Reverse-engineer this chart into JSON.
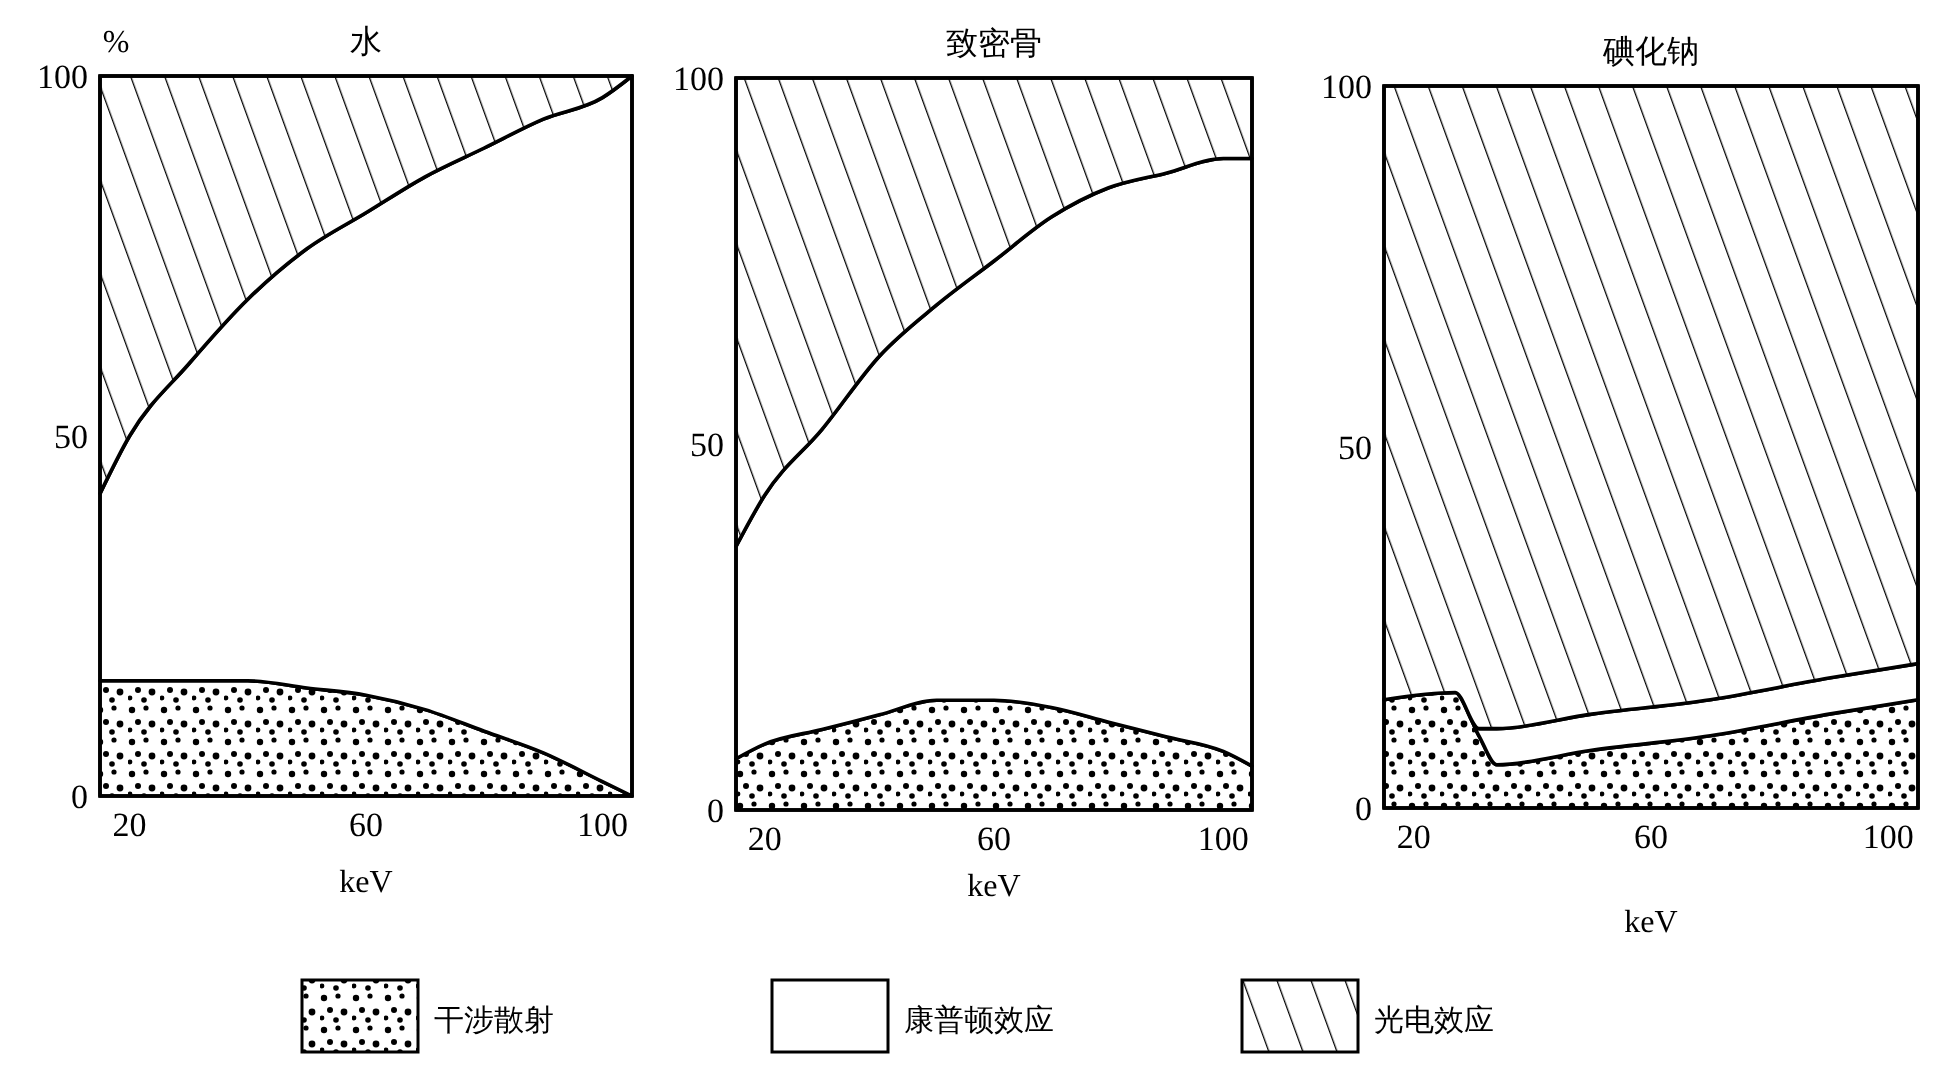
{
  "chart_data": [
    {
      "type": "area",
      "title": "水",
      "ylabel": "%",
      "xlabel": "keV",
      "stacked": true,
      "legend": "bottom",
      "x": [
        15,
        20,
        30,
        40,
        50,
        60,
        70,
        80,
        90,
        100,
        105
      ],
      "xlim": [
        15,
        105
      ],
      "xticks": [
        20,
        60,
        100
      ],
      "ylim": [
        0,
        100
      ],
      "yticks": [
        0,
        50,
        100
      ],
      "series": [
        {
          "name": "干涉散射",
          "color": "#000000",
          "values": [
            16,
            16,
            16,
            16,
            15,
            14,
            12,
            9,
            6,
            2,
            0
          ]
        },
        {
          "name": "康普顿效应",
          "color": "#000000",
          "values": [
            26,
            34,
            44,
            53,
            61,
            67,
            74,
            81,
            88,
            95,
            100
          ]
        },
        {
          "name": "光电效应",
          "color": "#000000",
          "values": [
            58,
            50,
            40,
            31,
            24,
            19,
            14,
            10,
            6,
            3,
            0
          ]
        }
      ]
    },
    {
      "type": "area",
      "title": "致密骨",
      "xlabel": "keV",
      "stacked": true,
      "x": [
        15,
        20,
        30,
        40,
        50,
        60,
        70,
        80,
        90,
        100,
        105
      ],
      "xlim": [
        15,
        105
      ],
      "xticks": [
        20,
        60,
        100
      ],
      "ylim": [
        0,
        100
      ],
      "yticks": [
        0,
        50,
        100
      ],
      "series": [
        {
          "color": "#000000",
          "values": [
            7,
            9,
            11,
            13,
            15,
            15,
            14,
            12,
            10,
            8,
            6
          ]
        },
        {
          "color": "#000000",
          "values": [
            29,
            34,
            41,
            49,
            54,
            60,
            67,
            73,
            77,
            81,
            83
          ]
        },
        {
          "color": "#000000",
          "values": [
            64,
            57,
            48,
            38,
            31,
            25,
            19,
            15,
            13,
            11,
            11
          ]
        }
      ]
    },
    {
      "type": "area",
      "title": "碘化钠",
      "xlabel": "keV",
      "stacked": true,
      "x": [
        15,
        27,
        31,
        34,
        50,
        70,
        90,
        105
      ],
      "xlim": [
        15,
        105
      ],
      "xticks": [
        20,
        60,
        100
      ],
      "ylim": [
        0,
        100
      ],
      "yticks": [
        0,
        50,
        100
      ],
      "series": [
        {
          "color": "#000000",
          "values": [
            15,
            16,
            10,
            6,
            8,
            10,
            13,
            15
          ]
        },
        {
          "color": "#000000",
          "values": [
            0,
            0,
            1,
            5,
            5,
            5,
            5,
            5
          ]
        },
        {
          "color": "#000000",
          "values": [
            85,
            84,
            89,
            89,
            87,
            85,
            82,
            80
          ]
        }
      ]
    }
  ]
}
